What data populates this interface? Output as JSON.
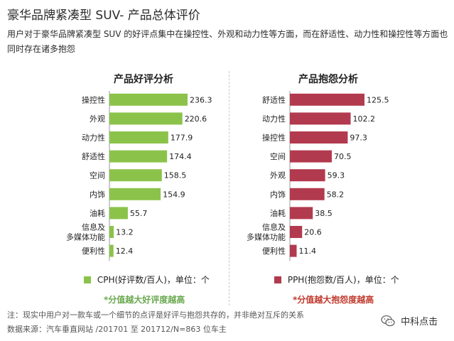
{
  "header": {
    "title": "豪华品牌紧凑型 SUV- 产品总体评价",
    "subtitle": "用户对于豪华品牌紧凑型 SUV 的好评点集中在操控性、外观和动力性等方面，而在舒适性、动力性和操控性等方面也同时存在诸多抱怨"
  },
  "chart_data": [
    {
      "type": "bar",
      "orientation": "horizontal",
      "title": "产品好评分析",
      "categories": [
        "操控性",
        "外观",
        "动力性",
        "舒适性",
        "空间",
        "内饰",
        "油耗",
        "信息及\n多媒体功能",
        "便利性"
      ],
      "values": [
        236.3,
        220.6,
        177.9,
        174.4,
        158.5,
        154.9,
        55.7,
        13.2,
        12.4
      ],
      "color": "#8bc34a",
      "xlim": [
        0,
        236.3
      ],
      "legend": "CPH(好评数/百人)，单位：个",
      "note": "*分值越大好评度越高",
      "note_color": "#6aa84f"
    },
    {
      "type": "bar",
      "orientation": "horizontal",
      "title": "产品抱怨分析",
      "categories": [
        "舒适性",
        "动力性",
        "操控性",
        "空间",
        "外观",
        "内饰",
        "油耗",
        "信息及\n多媒体功能",
        "便利性"
      ],
      "values": [
        125.5,
        102.2,
        97.3,
        70.5,
        59.3,
        58.2,
        38.5,
        20.6,
        11.4
      ],
      "color": "#b23a4e",
      "xlim": [
        0,
        125.5
      ],
      "legend": "PPH(抱怨数/百人)，单位：个",
      "note": "*分值越大抱怨度越高",
      "note_color": "#c0392b"
    }
  ],
  "footer": {
    "note": "注：现实中用户对一款车或一个细节的点评是好评与抱怨共存的，并非绝对互斥的关系",
    "source": "数据来源：汽车垂直网站 /201701 至 201712/N=863 位车主"
  },
  "logo": {
    "text": "中科点击",
    "icon": "wechat-icon"
  }
}
